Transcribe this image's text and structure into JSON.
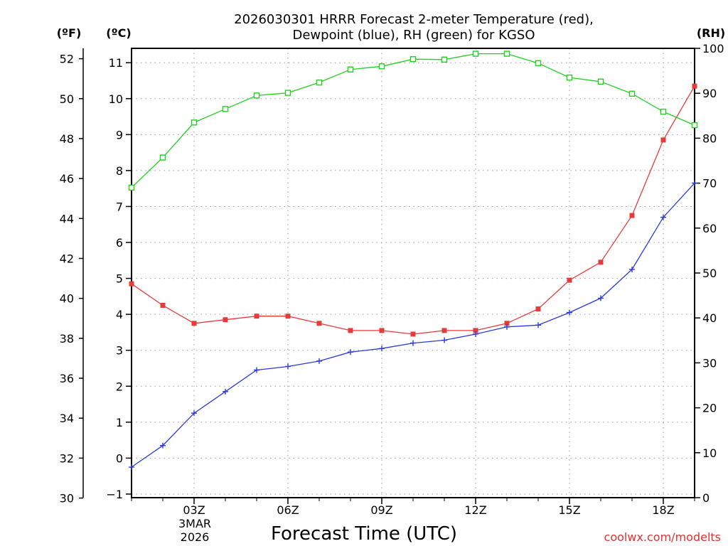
{
  "chart_data": {
    "type": "line",
    "title_line1": "2026030301 HRRR Forecast 2-meter Temperature (red),",
    "title_line2": "Dewpoint (blue), RH (green) for KGSO",
    "xlabel": "Forecast Time (UTC)",
    "units": {
      "f": "(ºF)",
      "c": "(ºC)",
      "rh": "(RH)"
    },
    "x": [
      1,
      2,
      3,
      4,
      5,
      6,
      7,
      8,
      9,
      10,
      11,
      12,
      13,
      14,
      15,
      16,
      17,
      18,
      19
    ],
    "x_ticks": [
      {
        "x": 3,
        "label": "03Z"
      },
      {
        "x": 6,
        "label": "06Z"
      },
      {
        "x": 9,
        "label": "09Z"
      },
      {
        "x": 12,
        "label": "12Z"
      },
      {
        "x": 15,
        "label": "15Z"
      },
      {
        "x": 18,
        "label": "18Z"
      }
    ],
    "date_label": [
      "3MAR",
      "2026"
    ],
    "xlim": [
      1,
      19
    ],
    "c_axis": {
      "range": [
        -1.1,
        11.4
      ],
      "ticks": [
        -1,
        0,
        1,
        2,
        3,
        4,
        5,
        6,
        7,
        8,
        9,
        10,
        11
      ]
    },
    "f_axis": {
      "range": [
        30.02,
        52.52
      ],
      "ticks": [
        30,
        32,
        34,
        36,
        38,
        40,
        42,
        44,
        46,
        48,
        50,
        52
      ]
    },
    "rh_axis": {
      "range": [
        0,
        100
      ],
      "ticks": [
        0,
        10,
        20,
        30,
        40,
        50,
        60,
        70,
        80,
        90,
        100
      ]
    },
    "series": [
      {
        "name": "Temperature",
        "axis": "c",
        "color": "#e83a3a",
        "marker": "filled-square",
        "values": [
          4.85,
          4.25,
          3.75,
          3.85,
          3.95,
          3.95,
          3.75,
          3.55,
          3.55,
          3.45,
          3.55,
          3.55,
          3.75,
          4.15,
          4.95,
          5.45,
          6.75,
          8.85,
          10.35
        ]
      },
      {
        "name": "Dewpoint",
        "axis": "c",
        "color": "#2a3ae0",
        "marker": "plus",
        "values": [
          -0.25,
          0.35,
          1.25,
          1.85,
          2.45,
          2.55,
          2.7,
          2.95,
          3.05,
          3.2,
          3.28,
          3.45,
          3.65,
          3.7,
          4.05,
          4.45,
          5.25,
          6.7,
          7.65
        ]
      },
      {
        "name": "RH",
        "axis": "rh",
        "color": "#22d022",
        "marker": "open-square",
        "values": [
          69.0,
          75.7,
          83.5,
          86.5,
          89.5,
          90.1,
          92.4,
          95.3,
          96.0,
          97.6,
          97.5,
          98.8,
          98.8,
          96.7,
          93.5,
          92.6,
          89.9,
          85.9,
          82.9
        ]
      }
    ],
    "watermark": "coolwx.com/modelts"
  }
}
